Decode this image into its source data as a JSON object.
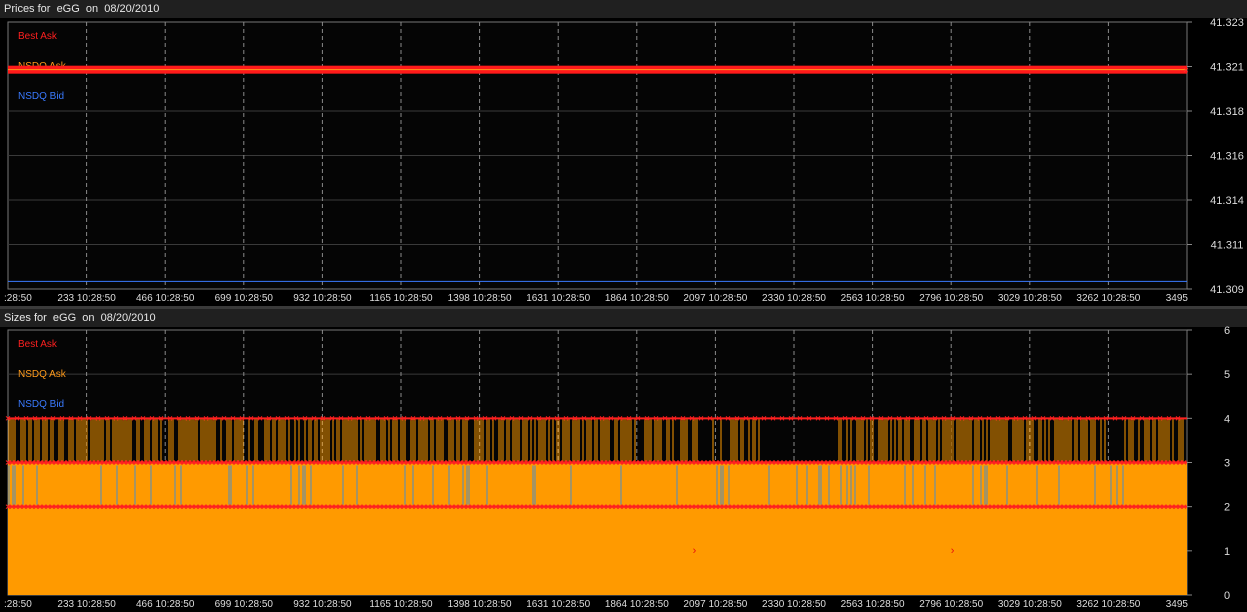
{
  "chart_data": [
    {
      "type": "line",
      "title": "Prices for  eGG  on  08/20/2010",
      "legend": [
        "Best Ask",
        "NSDQ Ask",
        "NSDQ Bid"
      ],
      "legend_placement": "top-left",
      "legend_colors": [
        "#ff2020",
        "#ff9a1a",
        "#3a7aff"
      ],
      "y_ticks": [
        "41.323",
        "41.321",
        "41.318",
        "41.316",
        "41.314",
        "41.311",
        "41.309"
      ],
      "ylim": [
        41.309,
        41.323
      ],
      "x_ticks": [
        ":28:50",
        "233 10:28:50",
        "466 10:28:50",
        "699 10:28:50",
        "932 10:28:50",
        "1165 10:28:50",
        "1398 10:28:50",
        "1631 10:28:50",
        "1864 10:28:50",
        "2097 10:28:50",
        "2330 10:28:50",
        "2563 10:28:50",
        "2796 10:28:50",
        "3029 10:28:50",
        "3262 10:28:50",
        "3495"
      ],
      "xlim": [
        0,
        3495
      ],
      "grid": true,
      "series": [
        {
          "name": "Best Ask",
          "color": "#ff2020",
          "value": 41.3205
        },
        {
          "name": "NSDQ Ask",
          "color": "#ff9a1a",
          "value": 41.3205
        },
        {
          "name": "NSDQ Bid",
          "color": "#3a7aff",
          "value": 41.3094
        }
      ]
    },
    {
      "type": "area",
      "title": "Sizes for  eGG  on  08/20/2010",
      "legend": [
        "Best Ask",
        "NSDQ Ask",
        "NSDQ Bid"
      ],
      "legend_placement": "top-left",
      "legend_colors": [
        "#ff2020",
        "#ff9a1a",
        "#3a7aff"
      ],
      "y_ticks": [
        "6",
        "5",
        "4",
        "3",
        "2",
        "1",
        "0"
      ],
      "ylim": [
        0,
        6
      ],
      "x_ticks": [
        ":28:50",
        "233 10:28:50",
        "466 10:28:50",
        "699 10:28:50",
        "932 10:28:50",
        "1165 10:28:50",
        "1398 10:28:50",
        "1631 10:28:50",
        "1864 10:28:50",
        "2097 10:28:50",
        "2330 10:28:50",
        "2563 10:28:50",
        "2796 10:28:50",
        "3029 10:28:50",
        "3262 10:28:50",
        "3495"
      ],
      "xlim": [
        0,
        3495
      ],
      "grid": true,
      "base_size": 2,
      "levels": [
        2,
        3,
        4
      ],
      "series": [
        {
          "name": "Best Ask",
          "color": "#ff2020"
        },
        {
          "name": "NSDQ Ask",
          "color": "#ff9a1a"
        },
        {
          "name": "NSDQ Bid",
          "color": "#3a7aff"
        }
      ],
      "isolated_markers": [
        {
          "x": 2035,
          "y": 1
        },
        {
          "x": 2800,
          "y": 1
        }
      ]
    }
  ]
}
